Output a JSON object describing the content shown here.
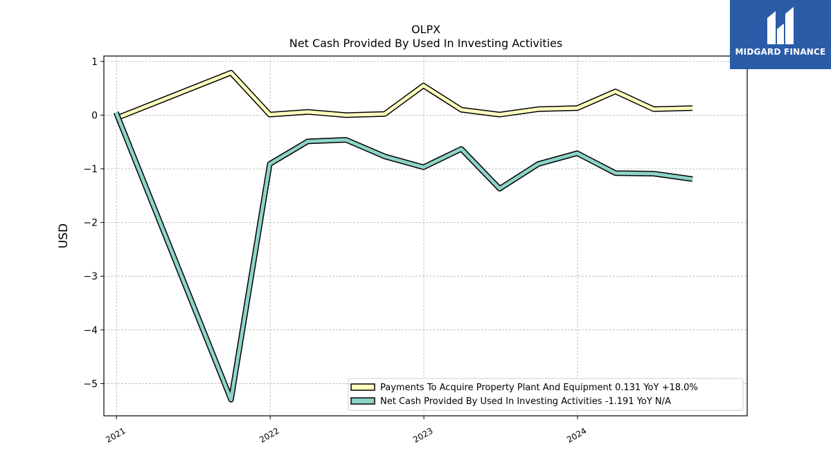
{
  "header": {
    "ticker": "OLPX",
    "title": "Net Cash Provided By Used In Investing Activities"
  },
  "brand": {
    "name": "MIDGARD FINANCE",
    "color": "#2b5ca8"
  },
  "chart_data": {
    "type": "line",
    "title": "OLPX",
    "subtitle": "Net Cash Provided By Used In Investing Activities",
    "ylabel": "USD",
    "xlabel": "",
    "ylim": [
      -5.6,
      1.1
    ],
    "yticks": [
      1,
      0,
      -1,
      -2,
      -3,
      -4,
      -5
    ],
    "ytick_labels": [
      "1",
      "0",
      "−1",
      "−2",
      "−3",
      "−4",
      "−5"
    ],
    "xlim": [
      "2020-12-02",
      "2025-02-07"
    ],
    "xticks": [
      "2021-01-01",
      "2022-01-01",
      "2023-01-01",
      "2024-01-01"
    ],
    "xtick_labels": [
      "2021",
      "2022",
      "2023",
      "2024"
    ],
    "grid": true,
    "legend_position": "lower-right",
    "series": [
      {
        "name": "Payments To Acquire Property Plant And Equipment",
        "legend_label": "Payments To Acquire Property Plant And Equipment  0.131 YoY +18.0%",
        "color": "#ffffbf",
        "x": [
          "2020-12-31",
          "2021-09-30",
          "2021-12-31",
          "2022-03-31",
          "2022-06-30",
          "2022-09-30",
          "2022-12-31",
          "2023-03-31",
          "2023-06-30",
          "2023-09-30",
          "2023-12-31",
          "2024-03-31",
          "2024-06-30",
          "2024-09-30"
        ],
        "y": [
          -0.06,
          0.79,
          0.01,
          0.06,
          0.0,
          0.02,
          0.55,
          0.1,
          0.01,
          0.11,
          0.13,
          0.44,
          0.11,
          0.131
        ]
      },
      {
        "name": "Net Cash Provided By Used In Investing Activities",
        "legend_label": "Net Cash Provided By Used In Investing Activities  -1.191 YoY N/A",
        "color": "#8dd3c7",
        "x": [
          "2020-12-31",
          "2021-09-30",
          "2021-12-31",
          "2022-03-31",
          "2022-06-30",
          "2022-09-30",
          "2022-12-31",
          "2023-03-31",
          "2023-06-30",
          "2023-09-30",
          "2023-12-31",
          "2024-03-31",
          "2024-06-30",
          "2024-09-30"
        ],
        "y": [
          0.05,
          -5.3,
          -0.91,
          -0.49,
          -0.46,
          -0.77,
          -0.97,
          -0.63,
          -1.37,
          -0.91,
          -0.71,
          -1.08,
          -1.09,
          -1.191
        ]
      }
    ]
  }
}
